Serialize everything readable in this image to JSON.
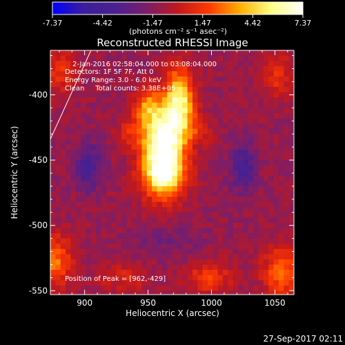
{
  "colorbar": {
    "tick_labels": [
      "-7.37",
      "-4.42",
      "-1.47",
      "1.47",
      "4.42",
      "7.37"
    ],
    "unit_label": "(photons cm⁻² s⁻¹ asec⁻²)",
    "stops": [
      "#0000ff",
      "#3c1e9a",
      "#4a2090",
      "#7a1e6a",
      "#c0181e",
      "#ff3a00",
      "#ffb000",
      "#ffff88",
      "#ffffff"
    ]
  },
  "plot": {
    "title": "Reconstructed RHESSI Image",
    "info_lines": [
      "2-Jan-2016 02:58:04.000 to 03:08:04.000",
      "Detectors: 1F 5F 7F, Att 0",
      "Energy Range: 3.0 - 6.0 keV",
      "Clean     Total counts: 3.38E+05"
    ],
    "peak_label": "Position of Peak = [962,-429]",
    "timestamp": "27-Sep-2017 02:11"
  },
  "chart_data": {
    "type": "heatmap",
    "title": "Reconstructed RHESSI Image",
    "xlabel": "Heliocentric X (arcsec)",
    "ylabel": "Heliocentric Y (arcsec)",
    "xlim": [
      873,
      1065
    ],
    "ylim": [
      -553,
      -366
    ],
    "x_ticks": [
      900,
      950,
      1000,
      1050
    ],
    "y_ticks": [
      -400,
      -450,
      -500,
      -550
    ],
    "colorbar_range": [
      -7.37,
      7.37
    ],
    "peak": {
      "x": 962,
      "y": -429
    },
    "limb_line": [
      [
        873,
        -434
      ],
      [
        905,
        -366
      ]
    ],
    "sources": [
      {
        "x": 962,
        "y": -441,
        "sx": 11,
        "sy": 22,
        "amp": 9.5
      },
      {
        "x": 975,
        "y": -404,
        "sx": 8,
        "sy": 17,
        "amp": 6.2
      },
      {
        "x": 949,
        "y": -409,
        "sx": 7,
        "sy": 9,
        "amp": 3.5
      },
      {
        "x": 963,
        "y": -463,
        "sx": 13,
        "sy": 10,
        "amp": 3.2
      },
      {
        "x": 937,
        "y": -430,
        "sx": 9,
        "sy": 8,
        "amp": 2.0
      },
      {
        "x": 988,
        "y": -428,
        "sx": 9,
        "sy": 8,
        "amp": 2.0
      },
      {
        "x": 876,
        "y": -527,
        "sx": 10,
        "sy": 14,
        "amp": 3.8
      },
      {
        "x": 1056,
        "y": -536,
        "sx": 11,
        "sy": 14,
        "amp": 3.6
      },
      {
        "x": 880,
        "y": -382,
        "sx": 9,
        "sy": 12,
        "amp": 2.4
      },
      {
        "x": 1052,
        "y": -386,
        "sx": 9,
        "sy": 12,
        "amp": 2.2
      },
      {
        "x": 998,
        "y": -540,
        "sx": 13,
        "sy": 9,
        "amp": 2.6
      },
      {
        "x": 930,
        "y": -540,
        "sx": 15,
        "sy": 8,
        "amp": 1.6
      }
    ],
    "dips": [
      {
        "x": 903,
        "y": -455,
        "sx": 7,
        "sy": 13,
        "amp": 3.0
      },
      {
        "x": 1025,
        "y": -455,
        "sx": 7,
        "sy": 13,
        "amp": 3.0
      },
      {
        "x": 963,
        "y": -512,
        "sx": 20,
        "sy": 8,
        "amp": 1.1
      }
    ],
    "baseline": -1.1
  }
}
